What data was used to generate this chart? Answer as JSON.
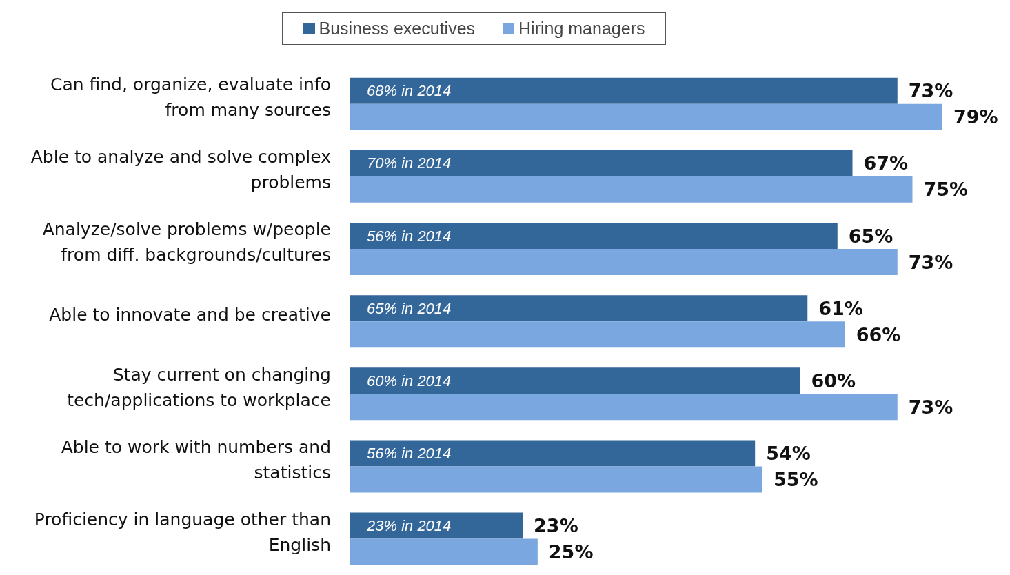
{
  "chart_data": {
    "type": "bar",
    "orientation": "horizontal",
    "legend": "top",
    "categories": [
      "Can find, organize, evaluate info from many sources",
      "Able to analyze and solve complex problems",
      "Analyze/solve problems w/people from diff. backgrounds/cultures",
      "Able to innovate and be creative",
      "Stay current on changing tech/applications to workplace",
      "Able to work with numbers and statistics",
      "Proficiency in language other than English"
    ],
    "series": [
      {
        "name": "Business executives",
        "color": "#336699",
        "values": [
          73,
          67,
          65,
          61,
          60,
          54,
          23
        ],
        "value_labels": [
          "73%",
          "67%",
          "65%",
          "61%",
          "60%",
          "54%",
          "23%"
        ]
      },
      {
        "name": "Hiring managers",
        "color": "#7ba7e0",
        "values": [
          79,
          75,
          73,
          66,
          73,
          55,
          25
        ],
        "value_labels": [
          "79%",
          "75%",
          "73%",
          "66%",
          "73%",
          "55%",
          "25%"
        ]
      }
    ],
    "annotations": [
      "68% in 2014",
      "70% in 2014",
      "56% in 2014",
      "65% in 2014",
      "60% in 2014",
      "56% in 2014",
      "23% in 2014"
    ]
  }
}
